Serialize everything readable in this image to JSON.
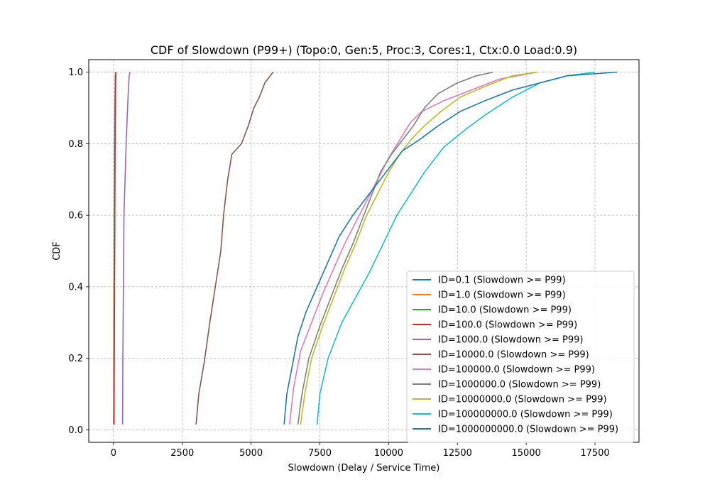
{
  "chart_data": {
    "type": "line",
    "title": "CDF of Slowdown (P99+) (Topo:0, Gen:5, Proc:3, Cores:1, Ctx:0.0 Load:0.9)",
    "xlabel": "Slowdown (Delay / Service Time)",
    "ylabel": "CDF",
    "xlim": [
      -900,
      19100
    ],
    "ylim": [
      -0.035,
      1.035
    ],
    "xticks": [
      0,
      2500,
      5000,
      7500,
      10000,
      12500,
      15000,
      17500
    ],
    "yticks": [
      0.0,
      0.2,
      0.4,
      0.6,
      0.8,
      1.0
    ],
    "xtick_labels": [
      "0",
      "2500",
      "5000",
      "7500",
      "10000",
      "12500",
      "15000",
      "17500"
    ],
    "ytick_labels": [
      "0.0",
      "0.2",
      "0.4",
      "0.6",
      "0.8",
      "1.0"
    ],
    "grid": true,
    "legend_position": "lower-right",
    "series": [
      {
        "name": "ID=0.1 (Slowdown >= P99)",
        "color": "#1f77b4",
        "x": [
          5,
          10,
          20,
          30,
          40,
          50,
          60,
          70
        ],
        "y": [
          0.015,
          0.2,
          0.4,
          0.6,
          0.8,
          0.9,
          0.97,
          1.0
        ]
      },
      {
        "name": "ID=1.0 (Slowdown >= P99)",
        "color": "#ff7f0e",
        "x": [
          10,
          18,
          28,
          38,
          48,
          58,
          68,
          78
        ],
        "y": [
          0.015,
          0.2,
          0.4,
          0.6,
          0.8,
          0.9,
          0.97,
          1.0
        ]
      },
      {
        "name": "ID=10.0 (Slowdown >= P99)",
        "color": "#2ca02c",
        "x": [
          15,
          23,
          33,
          43,
          53,
          63,
          73,
          83
        ],
        "y": [
          0.015,
          0.2,
          0.4,
          0.6,
          0.8,
          0.9,
          0.97,
          1.0
        ]
      },
      {
        "name": "ID=100.0 (Slowdown >= P99)",
        "color": "#d62728",
        "x": [
          20,
          28,
          38,
          48,
          58,
          68,
          78,
          90
        ],
        "y": [
          0.015,
          0.2,
          0.4,
          0.6,
          0.8,
          0.9,
          0.97,
          1.0
        ]
      },
      {
        "name": "ID=1000.0 (Slowdown >= P99)",
        "color": "#9467bd",
        "x": [
          330,
          340,
          360,
          380,
          420,
          460,
          500,
          540,
          570,
          600
        ],
        "y": [
          0.015,
          0.2,
          0.4,
          0.6,
          0.7,
          0.8,
          0.88,
          0.95,
          0.99,
          1.0
        ]
      },
      {
        "name": "ID=10000.0 (Slowdown >= P99)",
        "color": "#8c564b",
        "x": [
          3000,
          3100,
          3300,
          3500,
          3700,
          3900,
          4000,
          4150,
          4300,
          4650,
          4900,
          5100,
          5300,
          5500,
          5800
        ],
        "y": [
          0.015,
          0.1,
          0.19,
          0.3,
          0.4,
          0.5,
          0.6,
          0.7,
          0.77,
          0.8,
          0.85,
          0.9,
          0.93,
          0.97,
          1.0
        ]
      },
      {
        "name": "ID=100000.0 (Slowdown >= P99)",
        "color": "#e377c2",
        "x": [
          6400,
          6550,
          6800,
          7200,
          7600,
          8000,
          8400,
          8800,
          9200,
          9600,
          10000,
          10400,
          10800,
          11200,
          12000,
          13000,
          14000,
          15400
        ],
        "y": [
          0.015,
          0.12,
          0.22,
          0.3,
          0.38,
          0.45,
          0.52,
          0.58,
          0.64,
          0.7,
          0.76,
          0.81,
          0.86,
          0.89,
          0.92,
          0.95,
          0.98,
          1.0
        ]
      },
      {
        "name": "ID=1000000.0 (Slowdown >= P99)",
        "color": "#7f7f7f",
        "x": [
          6700,
          6850,
          7100,
          7500,
          7900,
          8300,
          8700,
          9100,
          9400,
          9700,
          10100,
          10500,
          10900,
          11300,
          11800,
          12500,
          13200,
          13800
        ],
        "y": [
          0.015,
          0.1,
          0.2,
          0.29,
          0.37,
          0.45,
          0.52,
          0.6,
          0.66,
          0.72,
          0.77,
          0.81,
          0.85,
          0.9,
          0.94,
          0.97,
          0.99,
          1.0
        ]
      },
      {
        "name": "ID=10000000.0 (Slowdown >= P99)",
        "color": "#bcbd22",
        "x": [
          6800,
          6950,
          7200,
          7600,
          8000,
          8400,
          8800,
          9200,
          9600,
          10000,
          10400,
          10800,
          11300,
          11900,
          12600,
          13500,
          14500,
          15400
        ],
        "y": [
          0.015,
          0.1,
          0.2,
          0.29,
          0.37,
          0.45,
          0.52,
          0.6,
          0.66,
          0.72,
          0.77,
          0.81,
          0.85,
          0.89,
          0.93,
          0.96,
          0.99,
          1.0
        ]
      },
      {
        "name": "ID=100000000.0 (Slowdown >= P99)",
        "color": "#17becf",
        "x": [
          7400,
          7500,
          7800,
          8300,
          8800,
          9300,
          9800,
          10300,
          10800,
          11300,
          12000,
          12800,
          13500,
          14500,
          15500,
          16500,
          17500
        ],
        "y": [
          0.015,
          0.1,
          0.2,
          0.3,
          0.37,
          0.44,
          0.52,
          0.6,
          0.66,
          0.72,
          0.79,
          0.84,
          0.88,
          0.93,
          0.97,
          0.99,
          1.0
        ]
      },
      {
        "name": "ID=1000000000.0 (Slowdown >= P99)",
        "color": "#1f77b4",
        "x": [
          6200,
          6300,
          6500,
          6700,
          7000,
          7400,
          7800,
          8200,
          8700,
          9300,
          9900,
          10500,
          11100,
          11800,
          12600,
          13500,
          14500,
          15500,
          16500,
          18300
        ],
        "y": [
          0.015,
          0.1,
          0.18,
          0.26,
          0.33,
          0.4,
          0.47,
          0.54,
          0.6,
          0.66,
          0.72,
          0.78,
          0.81,
          0.85,
          0.89,
          0.92,
          0.95,
          0.97,
          0.99,
          1.0
        ]
      }
    ]
  }
}
